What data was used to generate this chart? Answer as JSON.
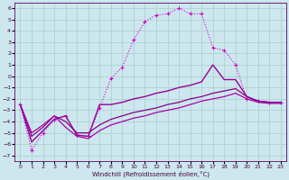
{
  "background_color": "#cce8ee",
  "grid_color": "#aacccc",
  "xlabel": "Windchill (Refroidissement éolien,°C)",
  "xlim": [
    -0.5,
    23.5
  ],
  "ylim": [
    -7.5,
    6.5
  ],
  "xticks": [
    0,
    1,
    2,
    3,
    4,
    5,
    6,
    7,
    8,
    9,
    10,
    11,
    12,
    13,
    14,
    15,
    16,
    17,
    18,
    19,
    20,
    21,
    22,
    23
  ],
  "yticks": [
    -7,
    -6,
    -5,
    -4,
    -3,
    -2,
    -1,
    0,
    1,
    2,
    3,
    4,
    5,
    6
  ],
  "series": [
    {
      "x": [
        0,
        1,
        2,
        3,
        4,
        5,
        6,
        7,
        8,
        9,
        10,
        11,
        12,
        13,
        14,
        15,
        16,
        17,
        18,
        19,
        20,
        21,
        22,
        23
      ],
      "y": [
        -2.5,
        -6.5,
        -5.0,
        -3.8,
        -3.5,
        -5.2,
        -5.3,
        -2.8,
        -0.2,
        0.8,
        3.2,
        4.8,
        5.4,
        5.5,
        6.0,
        5.5,
        5.5,
        2.5,
        2.3,
        1.0,
        -2.0,
        -2.2,
        -2.3,
        -2.3
      ],
      "color": "#cc00cc",
      "linewidth": 0.8,
      "linestyle": "dotted",
      "marker": "+",
      "markersize": 3.5,
      "markeredgewidth": 0.8
    },
    {
      "x": [
        0,
        1,
        2,
        3,
        4,
        5,
        6,
        7,
        8,
        9,
        10,
        11,
        12,
        13,
        14,
        15,
        16,
        17,
        18,
        19,
        20,
        21,
        22,
        23
      ],
      "y": [
        -2.5,
        -5.8,
        -4.8,
        -3.8,
        -3.5,
        -5.2,
        -5.3,
        -2.5,
        -2.5,
        -2.3,
        -2.0,
        -1.8,
        -1.5,
        -1.3,
        -1.0,
        -0.8,
        -0.5,
        1.0,
        -0.3,
        -0.3,
        -1.8,
        -2.2,
        -2.3,
        -2.3
      ],
      "color": "#990099",
      "linewidth": 1.0,
      "linestyle": "solid",
      "marker": null,
      "markersize": 0,
      "markeredgewidth": 0
    },
    {
      "x": [
        0,
        1,
        2,
        3,
        4,
        5,
        6,
        7,
        8,
        9,
        10,
        11,
        12,
        13,
        14,
        15,
        16,
        17,
        18,
        19,
        20,
        21,
        22,
        23
      ],
      "y": [
        -2.5,
        -5.3,
        -4.5,
        -3.5,
        -4.0,
        -5.0,
        -5.0,
        -4.3,
        -3.8,
        -3.5,
        -3.2,
        -3.0,
        -2.8,
        -2.5,
        -2.3,
        -2.0,
        -1.8,
        -1.5,
        -1.3,
        -1.1,
        -1.8,
        -2.2,
        -2.3,
        -2.3
      ],
      "color": "#880088",
      "linewidth": 0.9,
      "linestyle": "solid",
      "marker": null,
      "markersize": 0,
      "markeredgewidth": 0
    },
    {
      "x": [
        0,
        1,
        2,
        3,
        4,
        5,
        6,
        7,
        8,
        9,
        10,
        11,
        12,
        13,
        14,
        15,
        16,
        17,
        18,
        19,
        20,
        21,
        22,
        23
      ],
      "y": [
        -2.5,
        -5.0,
        -4.3,
        -3.5,
        -4.5,
        -5.3,
        -5.5,
        -4.8,
        -4.3,
        -4.0,
        -3.7,
        -3.5,
        -3.2,
        -3.0,
        -2.8,
        -2.5,
        -2.2,
        -2.0,
        -1.8,
        -1.5,
        -2.0,
        -2.3,
        -2.4,
        -2.4
      ],
      "color": "#aa00aa",
      "linewidth": 0.9,
      "linestyle": "solid",
      "marker": null,
      "markersize": 0,
      "markeredgewidth": 0
    }
  ]
}
